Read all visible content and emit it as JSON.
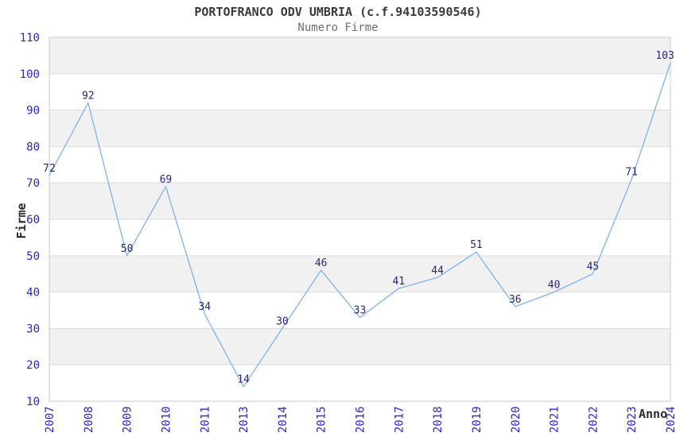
{
  "chart": {
    "title": "PORTOFRANCO ODV UMBRIA (c.f.94103590546)",
    "subtitle": "Numero Firme",
    "ylabel": "Firme",
    "xlabel": "Anno"
  },
  "chart_data": {
    "type": "line",
    "title": "PORTOFRANCO ODV UMBRIA (c.f.94103590546)",
    "subtitle": "Numero Firme",
    "xlabel": "Anno",
    "ylabel": "Firme",
    "categories": [
      "2007",
      "2008",
      "2009",
      "2010",
      "2011",
      "2013",
      "2014",
      "2015",
      "2016",
      "2017",
      "2018",
      "2019",
      "2020",
      "2021",
      "2022",
      "2023",
      "2024"
    ],
    "values": [
      72,
      92,
      50,
      69,
      34,
      14,
      30,
      46,
      33,
      41,
      44,
      51,
      36,
      40,
      45,
      71,
      103
    ],
    "ylim": [
      10,
      110
    ],
    "ytick_step": 10,
    "grid": true,
    "bands": "alternating-horizontal",
    "legend": "none",
    "markers": false,
    "point_labels": true,
    "x_tick_rotation": -90,
    "colors": {
      "line": "#7eb2ec",
      "tick_label": "#2626cc",
      "point_label": "#26267e",
      "band": "#f1f1f1",
      "gridline": "#dcdcdc",
      "border": "#c9c9c9",
      "title": "#3a3a3a",
      "subtitle": "#6f6f6f",
      "axis_title": "#2b2b2b",
      "background": "#ffffff"
    }
  }
}
